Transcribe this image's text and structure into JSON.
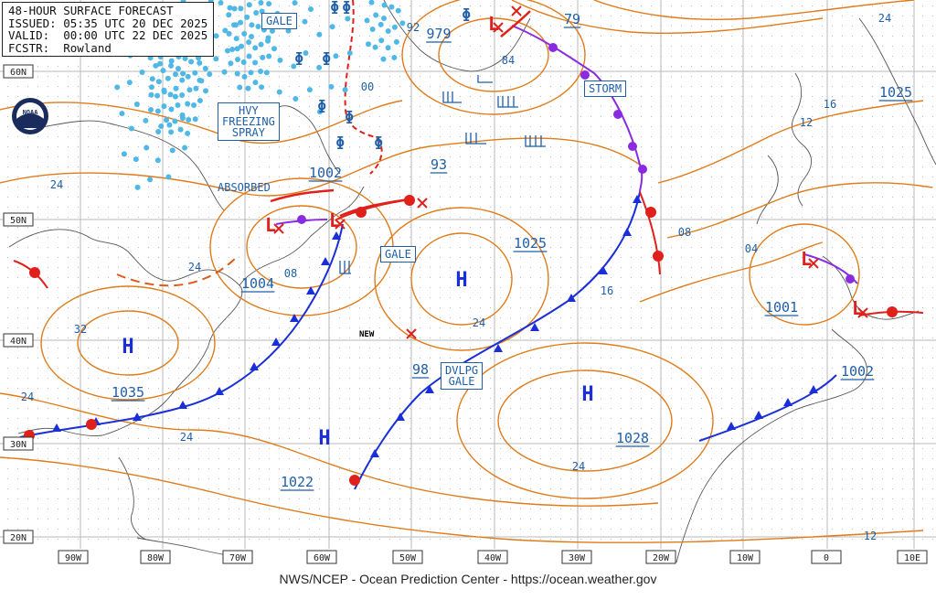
{
  "header": {
    "title": "48-HOUR SURFACE FORECAST",
    "issued": "ISSUED: 05:35 UTC 20 DEC 2025",
    "valid": "VALID:  00:00 UTC 22 DEC 2025",
    "forecaster": "FCSTR:  Rowland"
  },
  "footer": "NWS/NCEP - Ocean Prediction Center - https://ocean.weather.gov",
  "logo_text": "NOAA",
  "lat_labels": [
    "60N",
    "50N",
    "40N",
    "30N",
    "20N"
  ],
  "lon_labels": [
    "90W",
    "80W",
    "70W",
    "60W",
    "50W",
    "40W",
    "30W",
    "20W",
    "10W",
    "0",
    "10E"
  ],
  "warning_boxes": {
    "gale_nw": "GALE",
    "freezing_spray": "HVY\nFREEZING\nSPRAY",
    "gale_mid": "GALE",
    "storm": "STORM",
    "dvlpg_gale": "DVLPG\nGALE"
  },
  "pressure_labels": [
    {
      "id": "p979",
      "text": "979",
      "kind": "center-value"
    },
    {
      "id": "p1002a",
      "text": "1002",
      "kind": "center-value"
    },
    {
      "id": "p1004",
      "text": "1004",
      "kind": "center-value"
    },
    {
      "id": "p1035",
      "text": "1035",
      "kind": "center-value"
    },
    {
      "id": "p1025a",
      "text": "1025",
      "kind": "center-value"
    },
    {
      "id": "p1025b",
      "text": "1025",
      "kind": "center-value"
    },
    {
      "id": "p1028",
      "text": "1028",
      "kind": "center-value"
    },
    {
      "id": "p1022",
      "text": "1022",
      "kind": "center-value"
    },
    {
      "id": "p1001",
      "text": "1001",
      "kind": "center-value"
    },
    {
      "id": "p1002b",
      "text": "1002",
      "kind": "center-value"
    },
    {
      "id": "p93",
      "text": "93",
      "kind": "center-value"
    },
    {
      "id": "p98",
      "text": "98",
      "kind": "center-value"
    },
    {
      "id": "p79",
      "text": "79",
      "kind": "center-value"
    }
  ],
  "isobar_labels": [
    "92",
    "84",
    "00",
    "24",
    "24",
    "32",
    "24",
    "24",
    "08",
    "08",
    "16",
    "24",
    "24",
    "04",
    "12",
    "16",
    "24",
    "12"
  ],
  "text_labels": {
    "absorbed": "ABSORBED",
    "new": "NEW"
  },
  "systems": {
    "high": "H",
    "low": "L"
  },
  "colors": {
    "isobar": "#e07b1a",
    "cold_front": "#1a2fd8",
    "warm_front": "#e0201a",
    "occluded_front": "#8a2be2",
    "freezing_spray_dots": "#4fb8e6",
    "label_blue": "#1f5fa8",
    "grid": "#9a9a9a"
  }
}
